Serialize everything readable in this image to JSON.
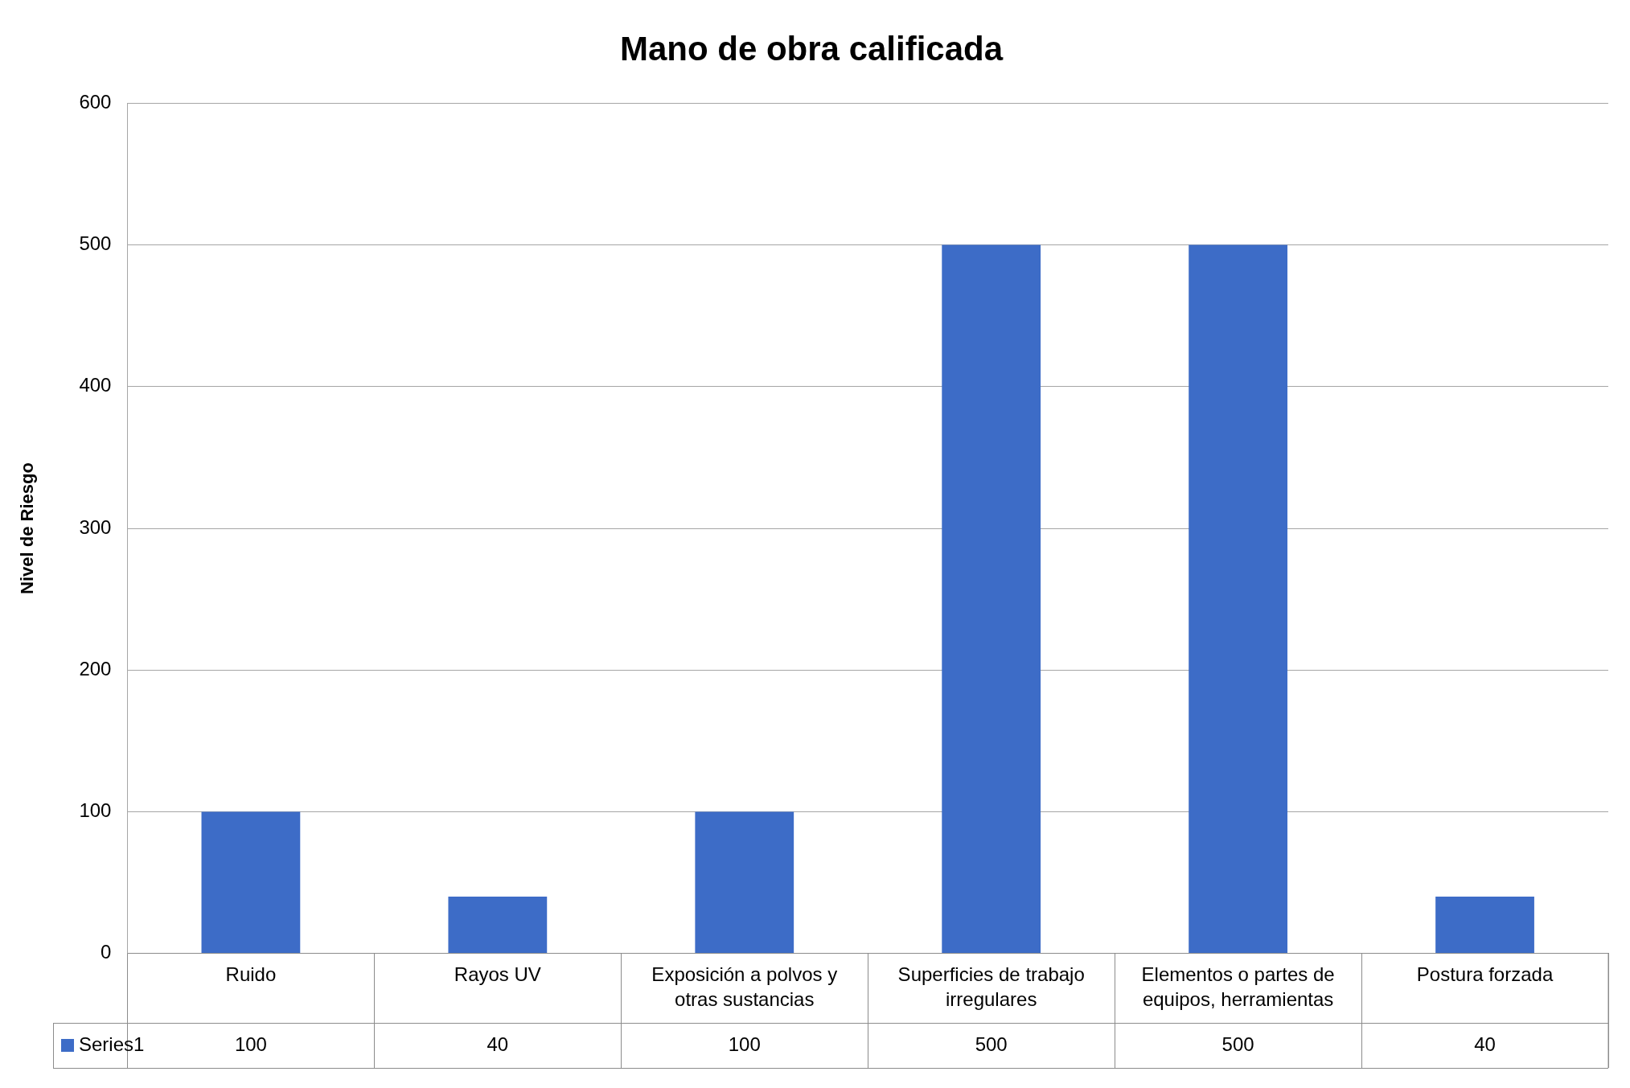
{
  "chart_data": {
    "type": "bar",
    "title": "Mano de obra calificada",
    "ylabel": "Nivel de Riesgo",
    "categories": [
      "Ruido",
      "Rayos UV",
      "Exposición a polvos y otras sustancias",
      "Superficies de trabajo irregulares",
      "Elementos o partes de equipos, herramientas",
      "Postura forzada"
    ],
    "series": [
      {
        "name": "Series1",
        "color": "#3d6cc7",
        "values": [
          100,
          40,
          100,
          500,
          500,
          40
        ]
      }
    ],
    "ylim": [
      0,
      600
    ],
    "yticks": [
      0,
      100,
      200,
      300,
      400,
      500,
      600
    ],
    "grid": "y",
    "data_labels": true,
    "legend": "bottom left"
  }
}
